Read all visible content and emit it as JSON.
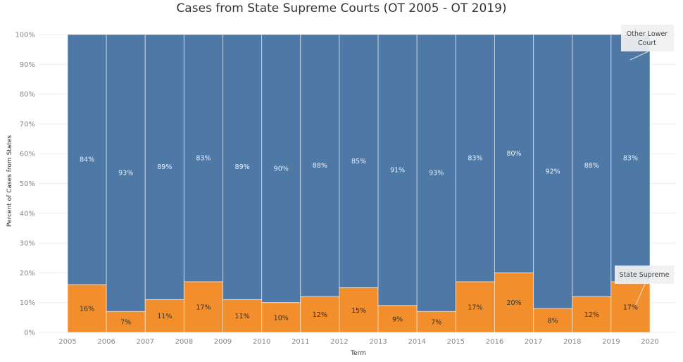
{
  "chart_data": {
    "type": "bar",
    "subtype": "stacked-100-percent-mekko",
    "title": "Cases from State Supreme Courts (OT 2005 - OT 2019)",
    "xlabel": "Term",
    "ylabel": "Percent of Cases from States",
    "x_ticks": [
      "2005",
      "2006",
      "2007",
      "2008",
      "2009",
      "2010",
      "2011",
      "2012",
      "2013",
      "2014",
      "2015",
      "2016",
      "2017",
      "2018",
      "2019",
      "2020"
    ],
    "y_ticks": [
      "0%",
      "10%",
      "20%",
      "30%",
      "40%",
      "50%",
      "60%",
      "70%",
      "80%",
      "90%",
      "100%"
    ],
    "ylim": [
      0,
      100
    ],
    "xlim": [
      2005,
      2020
    ],
    "grid": true,
    "categories": [
      "2005",
      "2006",
      "2007",
      "2008",
      "2009",
      "2010",
      "2011",
      "2012",
      "2013",
      "2014",
      "2015",
      "2016",
      "2017",
      "2018",
      "2019"
    ],
    "series": [
      {
        "name": "State Supreme",
        "color": "#f28e2b",
        "values": [
          16,
          7,
          11,
          17,
          11,
          10,
          12,
          15,
          9,
          7,
          17,
          20,
          8,
          12,
          17
        ],
        "labels": [
          "16%",
          "7%",
          "11%",
          "17%",
          "11%",
          "10%",
          "12%",
          "15%",
          "9%",
          "7%",
          "17%",
          "20%",
          "8%",
          "12%",
          "17%"
        ]
      },
      {
        "name": "Other Lower Court",
        "color": "#4e79a7",
        "values": [
          84,
          93,
          89,
          83,
          89,
          90,
          88,
          85,
          91,
          93,
          83,
          80,
          92,
          88,
          83
        ],
        "labels": [
          "84%",
          "93%",
          "89%",
          "83%",
          "89%",
          "90%",
          "88%",
          "85%",
          "91%",
          "93%",
          "83%",
          "80%",
          "92%",
          "88%",
          "83%"
        ]
      }
    ],
    "annotations": [
      {
        "text": "Other Lower Court",
        "lines": [
          "Other Lower",
          "Court"
        ],
        "target_series": "Other Lower Court",
        "target_category": "2019"
      },
      {
        "text": "State Supreme",
        "lines": [
          "State Supreme"
        ],
        "target_series": "State Supreme",
        "target_category": "2019"
      }
    ]
  }
}
